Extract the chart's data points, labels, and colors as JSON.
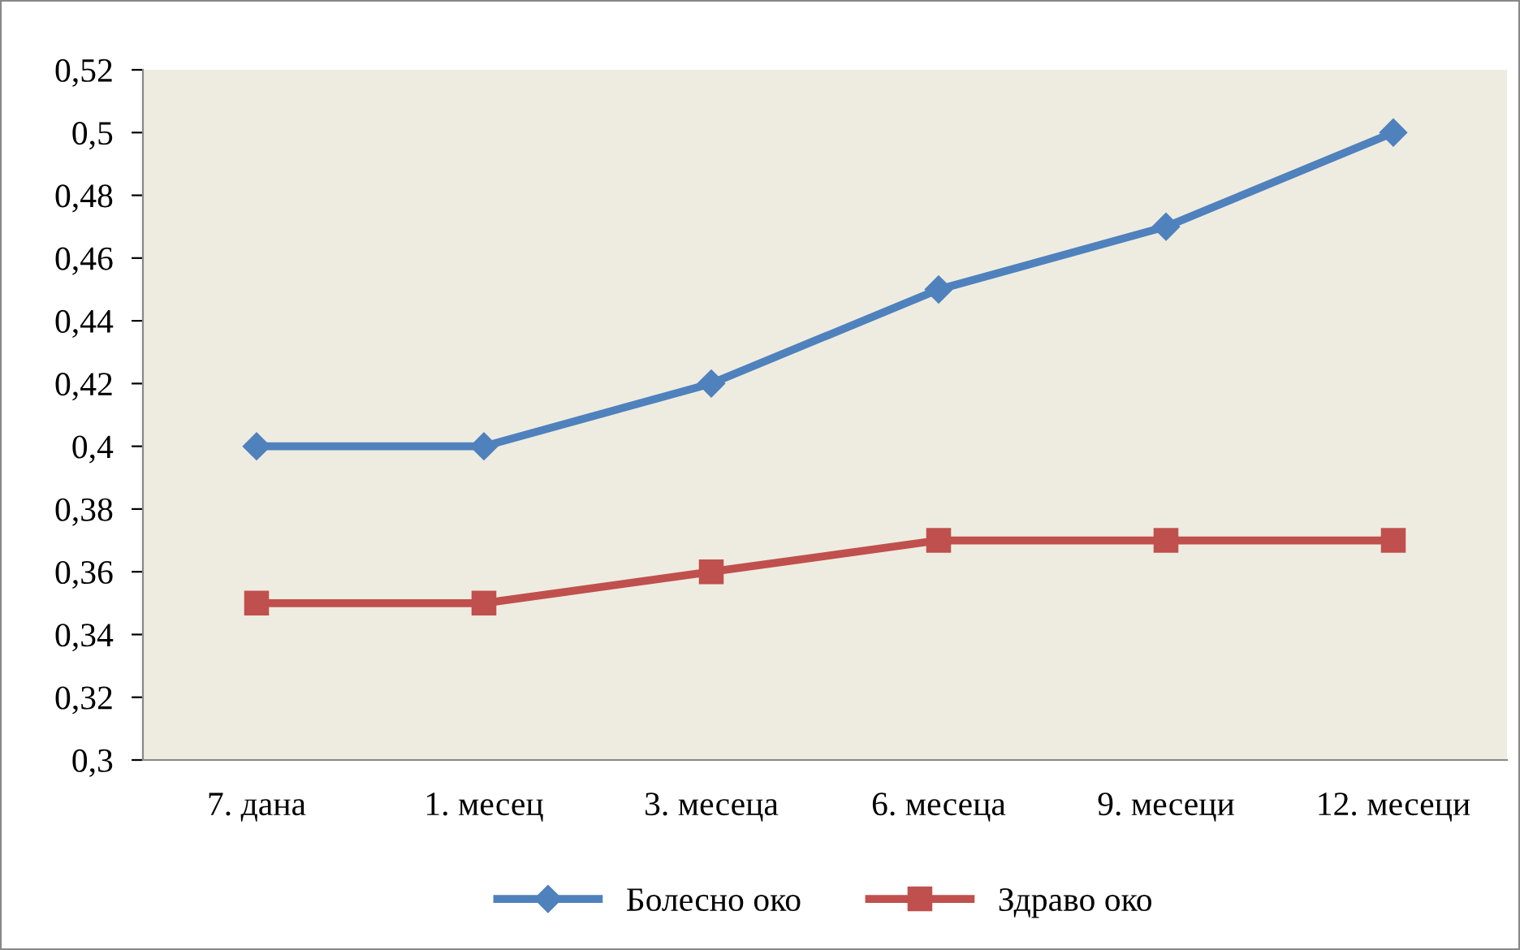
{
  "chart_data": {
    "type": "line",
    "categories": [
      "7. дана",
      "1. месец",
      "3. месеца",
      "6. месеца",
      "9. месеци",
      "12. месеци"
    ],
    "series": [
      {
        "name": "Болесно око",
        "color": "#4f81bd",
        "marker": "diamond",
        "values": [
          0.4,
          0.4,
          0.42,
          0.45,
          0.47,
          0.5
        ]
      },
      {
        "name": "Здраво око",
        "color": "#c0504d",
        "marker": "square",
        "values": [
          0.35,
          0.35,
          0.36,
          0.37,
          0.37,
          0.37
        ]
      }
    ],
    "ylim": [
      0.3,
      0.52
    ],
    "yticks": [
      {
        "value": 0.3,
        "label": "0,3"
      },
      {
        "value": 0.32,
        "label": "0,32"
      },
      {
        "value": 0.34,
        "label": "0,34"
      },
      {
        "value": 0.36,
        "label": "0,36"
      },
      {
        "value": 0.38,
        "label": "0,38"
      },
      {
        "value": 0.4,
        "label": "0,4"
      },
      {
        "value": 0.42,
        "label": "0,42"
      },
      {
        "value": 0.44,
        "label": "0,44"
      },
      {
        "value": 0.46,
        "label": "0,46"
      },
      {
        "value": 0.48,
        "label": "0,48"
      },
      {
        "value": 0.5,
        "label": "0,5"
      },
      {
        "value": 0.52,
        "label": "0,52"
      }
    ],
    "grid": false,
    "legend": "bottom",
    "line_style": "solid"
  }
}
